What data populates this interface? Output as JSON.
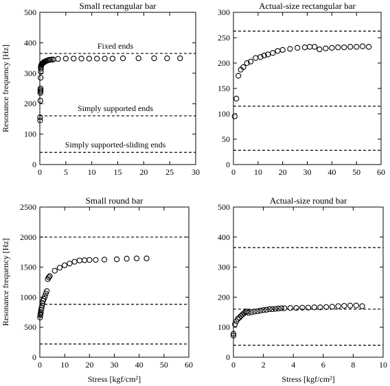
{
  "chart_data": [
    {
      "id": "tl",
      "type": "scatter",
      "title": "Small rectangular bar",
      "ylabel": "Resonance frequency [Hz]",
      "xlabel": "",
      "xlim": [
        0,
        30
      ],
      "ylim": [
        0,
        500
      ],
      "xticks": [
        0,
        5,
        10,
        15,
        20,
        25,
        30
      ],
      "yticks": [
        0,
        100,
        200,
        300,
        400,
        500
      ],
      "reference_lines": [
        {
          "y": 365,
          "label": "Fixed ends"
        },
        {
          "y": 160,
          "label": "Simply supported ends"
        },
        {
          "y": 40,
          "label": "Simply supported-sliding ends"
        }
      ],
      "x": [
        0.05,
        0.05,
        0.1,
        0.1,
        0.1,
        0.15,
        0.15,
        0.15,
        0.2,
        0.2,
        0.2,
        0.25,
        0.3,
        0.4,
        0.5,
        0.6,
        0.7,
        0.8,
        1.0,
        1.2,
        1.5,
        1.8,
        2.0,
        2.3,
        2.6,
        3.5,
        5.0,
        6.5,
        8.0,
        9.5,
        11.0,
        12.5,
        14.0,
        16.0,
        19.0,
        22.0,
        24.5,
        27.0
      ],
      "y": [
        145,
        155,
        210,
        235,
        245,
        250,
        240,
        285,
        305,
        315,
        320,
        325,
        328,
        330,
        332,
        333,
        335,
        337,
        338,
        340,
        342,
        344,
        344,
        345,
        345,
        347,
        348,
        348,
        348,
        348,
        348,
        348,
        348,
        349,
        349,
        349,
        349,
        349
      ]
    },
    {
      "id": "tr",
      "type": "scatter",
      "title": "Actual-size rectangular bar",
      "ylabel": "",
      "xlabel": "",
      "xlim": [
        0,
        60
      ],
      "ylim": [
        0,
        300
      ],
      "xticks": [
        0,
        10,
        20,
        30,
        40,
        50,
        60
      ],
      "yticks": [
        0,
        50,
        100,
        150,
        200,
        250,
        300
      ],
      "reference_lines": [
        {
          "y": 263,
          "label": ""
        },
        {
          "y": 115,
          "label": ""
        },
        {
          "y": 28,
          "label": ""
        }
      ],
      "x": [
        0.5,
        1.2,
        2.0,
        3.0,
        4.0,
        5.5,
        7.0,
        9.0,
        11.0,
        12.5,
        14.0,
        16.0,
        18.0,
        20.0,
        23.0,
        26.0,
        29.0,
        31.0,
        33.0,
        35.0,
        37.5,
        40.0,
        42.5,
        45.0,
        47.5,
        50.0,
        52.5,
        55.0
      ],
      "y": [
        95,
        130,
        175,
        187,
        192,
        200,
        203,
        210,
        212,
        215,
        217,
        220,
        224,
        226,
        228,
        230,
        231,
        232,
        232,
        227,
        229,
        230,
        231,
        231,
        232,
        232,
        233,
        232
      ]
    },
    {
      "id": "bl",
      "type": "scatter",
      "title": "Small round bar",
      "ylabel": "Resonance frequency [Hz]",
      "xlabel": "Stress [kgf/cm²]",
      "xlim": [
        0,
        60
      ],
      "ylim": [
        0,
        2500
      ],
      "xticks": [
        0,
        10,
        20,
        30,
        40,
        50,
        60
      ],
      "yticks": [
        0,
        500,
        1000,
        1500,
        2000,
        2500
      ],
      "reference_lines": [
        {
          "y": 2000,
          "label": ""
        },
        {
          "y": 880,
          "label": ""
        },
        {
          "y": 220,
          "label": ""
        }
      ],
      "x": [
        0.1,
        0.2,
        0.3,
        0.4,
        0.5,
        0.7,
        0.9,
        1.1,
        1.3,
        1.6,
        2.0,
        2.4,
        2.8,
        3.2,
        3.6,
        4.0,
        6.0,
        8.0,
        10.0,
        12.0,
        14.0,
        16.0,
        18.0,
        20.0,
        22.5,
        26.0,
        31.0,
        35.0,
        39.0,
        43.0
      ],
      "y": [
        660,
        700,
        720,
        750,
        790,
        820,
        860,
        900,
        940,
        970,
        1010,
        1060,
        1100,
        1300,
        1330,
        1350,
        1440,
        1490,
        1530,
        1560,
        1590,
        1610,
        1615,
        1620,
        1620,
        1625,
        1630,
        1640,
        1645,
        1645
      ]
    },
    {
      "id": "br",
      "type": "scatter",
      "title": "Actual-size round bar",
      "ylabel": "",
      "xlabel": "Stress [kgf/cm²]",
      "xlim": [
        0,
        10
      ],
      "ylim": [
        0,
        500
      ],
      "xticks": [
        0,
        2,
        4,
        6,
        8,
        10
      ],
      "yticks": [
        0,
        100,
        200,
        300,
        400,
        500
      ],
      "reference_lines": [
        {
          "y": 365,
          "label": ""
        },
        {
          "y": 160,
          "label": ""
        },
        {
          "y": 40,
          "label": ""
        }
      ],
      "x": [
        0.0,
        0.0,
        0.1,
        0.2,
        0.3,
        0.4,
        0.5,
        0.6,
        0.7,
        0.8,
        0.9,
        1.0,
        1.2,
        1.4,
        1.6,
        1.8,
        2.0,
        2.2,
        2.4,
        2.6,
        2.8,
        3.0,
        3.2,
        3.4,
        3.8,
        4.2,
        4.6,
        5.0,
        5.4,
        5.8,
        6.2,
        6.6,
        7.0,
        7.4,
        7.8,
        8.2,
        8.6
      ],
      "y": [
        72,
        78,
        110,
        120,
        128,
        132,
        137,
        142,
        146,
        150,
        152,
        148,
        150,
        152,
        153,
        155,
        157,
        158,
        160,
        160,
        161,
        162,
        163,
        163,
        164,
        164,
        165,
        165,
        166,
        166,
        167,
        168,
        170,
        171,
        172,
        172,
        170
      ]
    }
  ]
}
